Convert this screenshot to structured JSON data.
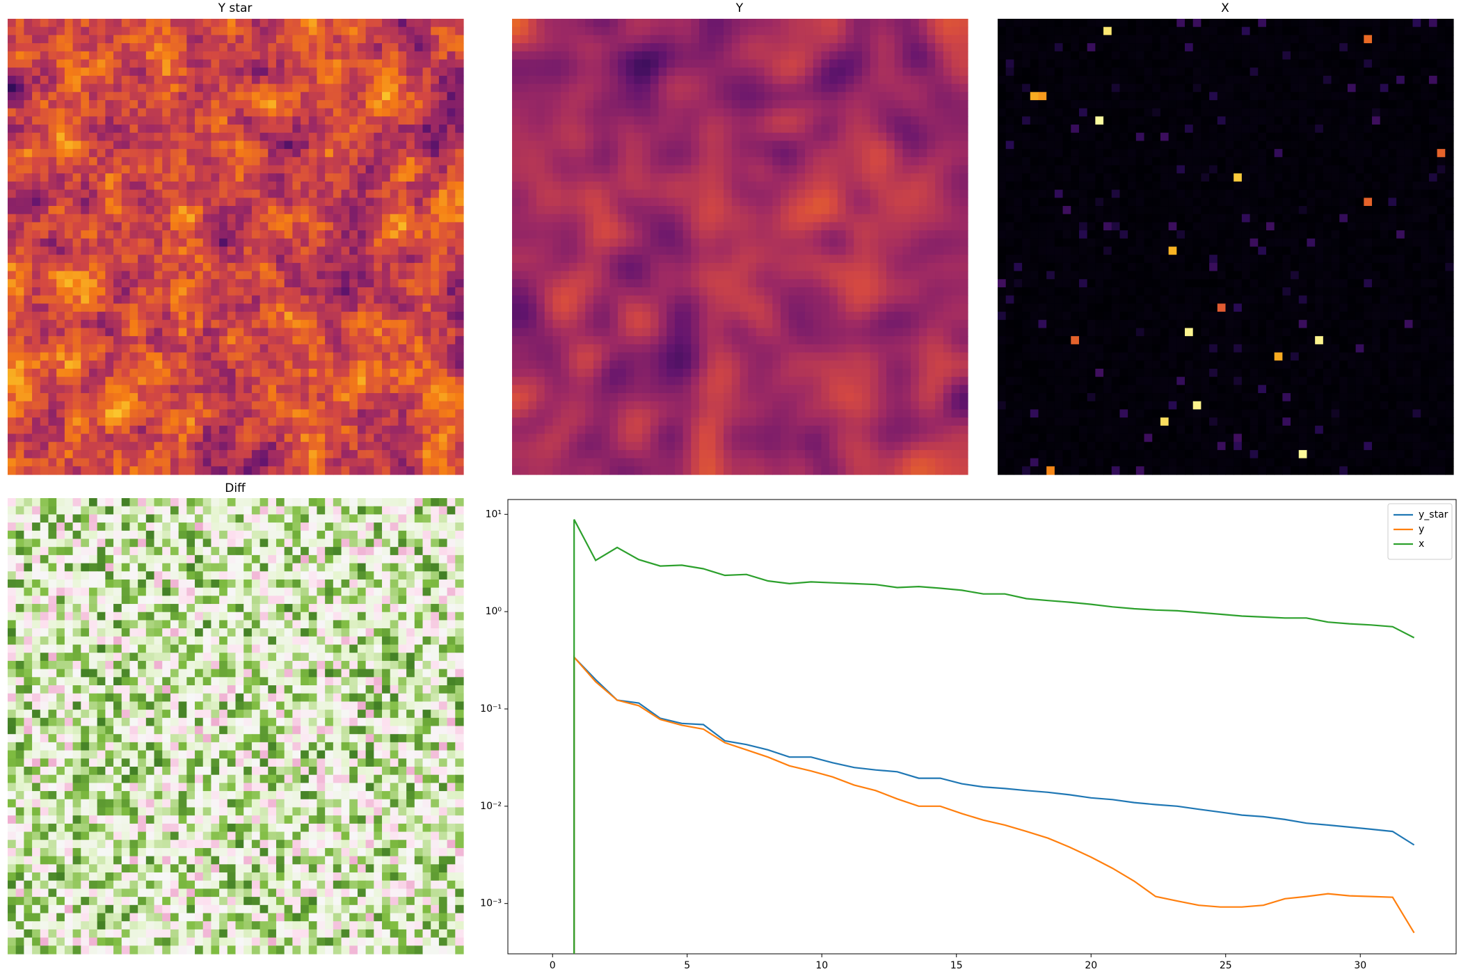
{
  "panels": [
    {
      "title": "Y star"
    },
    {
      "title": "Y"
    },
    {
      "title": "X"
    },
    {
      "title": "Diff"
    }
  ],
  "chart_data": {
    "type": "line",
    "x": [
      0.8,
      0.8,
      1.6,
      2.4,
      3.2,
      4.0,
      4.8,
      5.6,
      6.4,
      7.2,
      8.0,
      8.8,
      9.6,
      10.4,
      11.2,
      12.0,
      12.8,
      13.6,
      14.4,
      15.2,
      16.0,
      16.8,
      17.6,
      18.4,
      19.2,
      20.0,
      20.8,
      21.6,
      22.4,
      23.2,
      24.0,
      24.8,
      25.6,
      26.4,
      27.2,
      28.0,
      28.8,
      29.6,
      30.4,
      31.2,
      32.0
    ],
    "series": [
      {
        "name": "y_star",
        "color": "#1f77b4",
        "values": [
          0,
          0.34,
          0.2,
          0.123,
          0.115,
          0.08,
          0.071,
          0.069,
          0.047,
          0.043,
          0.038,
          0.032,
          0.032,
          0.028,
          0.025,
          0.0236,
          0.0226,
          0.0194,
          0.0194,
          0.017,
          0.0158,
          0.0152,
          0.0145,
          0.0139,
          0.0131,
          0.0122,
          0.0117,
          0.0109,
          0.0104,
          0.01,
          0.0093,
          0.0087,
          0.0081,
          0.0078,
          0.0073,
          0.0067,
          0.0064,
          0.0061,
          0.0058,
          0.0055,
          0.004
        ]
      },
      {
        "name": "y",
        "color": "#ff7f0e",
        "values": [
          0,
          0.34,
          0.19,
          0.123,
          0.108,
          0.078,
          0.068,
          0.062,
          0.045,
          0.038,
          0.032,
          0.026,
          0.023,
          0.02,
          0.0165,
          0.0145,
          0.0119,
          0.01,
          0.01,
          0.0084,
          0.0072,
          0.0064,
          0.0055,
          0.0047,
          0.0038,
          0.003,
          0.0023,
          0.0017,
          0.00118,
          0.00106,
          0.00096,
          0.00092,
          0.00092,
          0.00096,
          0.00112,
          0.00118,
          0.00126,
          0.0012,
          0.00118,
          0.00116,
          0.0005
        ]
      },
      {
        "name": "x",
        "color": "#2ca02c",
        "values": [
          0,
          8.85,
          3.36,
          4.57,
          3.43,
          2.94,
          3.0,
          2.76,
          2.36,
          2.41,
          2.07,
          1.94,
          2.02,
          1.98,
          1.94,
          1.9,
          1.77,
          1.81,
          1.74,
          1.66,
          1.52,
          1.52,
          1.36,
          1.3,
          1.25,
          1.19,
          1.12,
          1.07,
          1.04,
          1.02,
          0.98,
          0.94,
          0.9,
          0.88,
          0.86,
          0.86,
          0.78,
          0.75,
          0.73,
          0.7,
          0.54
        ]
      }
    ],
    "xlim": [
      -1.66,
      33.56
    ],
    "xticks": [
      0,
      5,
      10,
      15,
      20,
      25,
      30
    ],
    "ylim": [
      0.000304,
      14.2
    ],
    "log_y": true,
    "yticks": [
      {
        "value": 0.001,
        "label": "10⁻³"
      },
      {
        "value": 0.01,
        "label": "10⁻²"
      },
      {
        "value": 0.1,
        "label": "10⁻¹"
      },
      {
        "value": 1,
        "label": "10⁰"
      },
      {
        "value": 10,
        "label": "10¹"
      }
    ],
    "legend": "upper right"
  }
}
